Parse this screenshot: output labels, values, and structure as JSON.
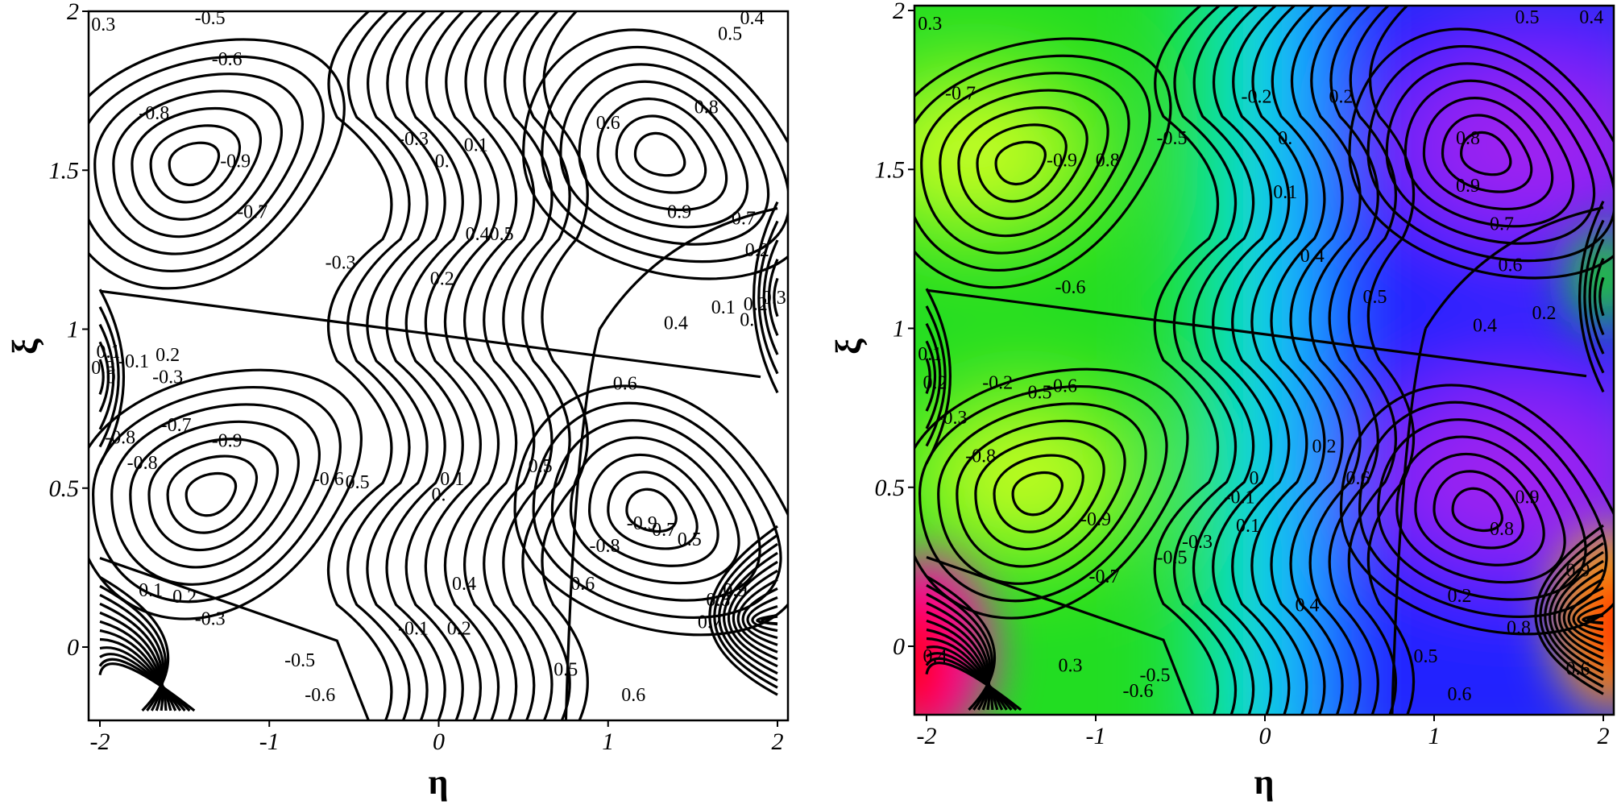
{
  "chart_data": [
    {
      "type": "contour",
      "title": "",
      "xlabel": "η",
      "ylabel": "ξ",
      "xlim": [
        -2,
        2
      ],
      "ylim": [
        -0.2,
        2
      ],
      "x_ticks": [
        "-2",
        "-1",
        "0",
        "1",
        "2"
      ],
      "y_ticks": [
        "0",
        "0.5",
        "1",
        "1.5",
        "2"
      ],
      "filled": false,
      "contour_labels": [
        {
          "text": "0.3",
          "x": -1.98,
          "y": 1.96
        },
        {
          "text": "-0.5",
          "x": -1.35,
          "y": 1.98
        },
        {
          "text": "-0.6",
          "x": -1.25,
          "y": 1.85
        },
        {
          "text": "-0.8",
          "x": -1.68,
          "y": 1.68
        },
        {
          "text": "-0.9",
          "x": -1.2,
          "y": 1.53
        },
        {
          "text": "-0.7",
          "x": -1.1,
          "y": 1.37
        },
        {
          "text": "-0.3",
          "x": -0.58,
          "y": 1.21
        },
        {
          "text": "-0.3",
          "x": -0.15,
          "y": 1.6
        },
        {
          "text": "0.1",
          "x": 0.22,
          "y": 1.58
        },
        {
          "text": "0.",
          "x": 0.02,
          "y": 1.53
        },
        {
          "text": "0.2",
          "x": 0.02,
          "y": 1.16
        },
        {
          "text": "0.40.5",
          "x": 0.3,
          "y": 1.3
        },
        {
          "text": "0.6",
          "x": 1.0,
          "y": 1.65
        },
        {
          "text": "0.8",
          "x": 1.58,
          "y": 1.7
        },
        {
          "text": "0.9",
          "x": 1.42,
          "y": 1.37
        },
        {
          "text": "0.5",
          "x": 1.72,
          "y": 1.93
        },
        {
          "text": "0.4",
          "x": 1.85,
          "y": 1.98
        },
        {
          "text": "0.7",
          "x": 1.8,
          "y": 1.35
        },
        {
          "text": "0.2",
          "x": 1.88,
          "y": 1.25
        },
        {
          "text": "0.1",
          "x": 1.68,
          "y": 1.07
        },
        {
          "text": "0.2",
          "x": 1.87,
          "y": 1.08
        },
        {
          "text": "0.3",
          "x": 1.98,
          "y": 1.1
        },
        {
          "text": "0.",
          "x": 1.82,
          "y": 1.03
        },
        {
          "text": "0.4",
          "x": 1.4,
          "y": 1.02
        },
        {
          "text": "0.6",
          "x": 1.1,
          "y": 0.83
        },
        {
          "text": "0.1",
          "x": -1.95,
          "y": 0.93
        },
        {
          "text": "-0.1",
          "x": -1.8,
          "y": 0.9
        },
        {
          "text": "0.2",
          "x": -1.6,
          "y": 0.92
        },
        {
          "text": "0.3",
          "x": -1.98,
          "y": 0.88
        },
        {
          "text": "0.",
          "x": -1.92,
          "y": 0.85
        },
        {
          "text": "-0.3",
          "x": -1.6,
          "y": 0.85
        },
        {
          "text": "-0.7",
          "x": -1.55,
          "y": 0.7
        },
        {
          "text": "-0.8",
          "x": -1.88,
          "y": 0.66
        },
        {
          "text": "-0.8",
          "x": -1.75,
          "y": 0.58
        },
        {
          "text": "-0.9",
          "x": -1.25,
          "y": 0.65
        },
        {
          "text": "-0.6",
          "x": -0.65,
          "y": 0.53
        },
        {
          "text": "0.5",
          "x": -0.48,
          "y": 0.52
        },
        {
          "text": "0.1",
          "x": 0.08,
          "y": 0.53
        },
        {
          "text": "0.",
          "x": 0.0,
          "y": 0.48
        },
        {
          "text": "0.5",
          "x": 0.6,
          "y": 0.57
        },
        {
          "text": "-0.9",
          "x": 1.2,
          "y": 0.39
        },
        {
          "text": "-0.8",
          "x": 0.98,
          "y": 0.32
        },
        {
          "text": "0.4",
          "x": 0.15,
          "y": 0.2
        },
        {
          "text": "0.6",
          "x": 0.85,
          "y": 0.2
        },
        {
          "text": "0.1",
          "x": -1.7,
          "y": 0.18
        },
        {
          "text": "0.2",
          "x": -1.5,
          "y": 0.16
        },
        {
          "text": "-0.3",
          "x": -1.35,
          "y": 0.09
        },
        {
          "text": "-0.1",
          "x": -0.15,
          "y": 0.06
        },
        {
          "text": "0.2",
          "x": 0.12,
          "y": 0.06
        },
        {
          "text": "-0.5",
          "x": -0.82,
          "y": -0.04
        },
        {
          "text": "-0.6",
          "x": -0.7,
          "y": -0.15
        },
        {
          "text": "0.5",
          "x": 0.75,
          "y": -0.07
        },
        {
          "text": "0.6",
          "x": 1.15,
          "y": -0.15
        },
        {
          "text": "0.9",
          "x": 1.75,
          "y": 0.18
        },
        {
          "text": "0.7",
          "x": 1.6,
          "y": 0.08
        },
        {
          "text": "0.8",
          "x": 1.65,
          "y": 0.15
        },
        {
          "text": "0.5",
          "x": 1.48,
          "y": 0.34
        },
        {
          "text": "0.7",
          "x": 1.33,
          "y": 0.37
        }
      ]
    },
    {
      "type": "heatmap",
      "title": "",
      "xlabel": "η",
      "ylabel": "ξ",
      "xlim": [
        -2,
        2
      ],
      "ylim": [
        -0.2,
        2
      ],
      "x_ticks": [
        "-2",
        "-1",
        "0",
        "1",
        "2"
      ],
      "y_ticks": [
        "0",
        "0.5",
        "1",
        "1.5",
        "2"
      ],
      "filled": true,
      "colormap": [
        "#ff0000",
        "#b8ff1e",
        "#22e022",
        "#00ffff",
        "#1a1aff",
        "#a020f0",
        "#ff00ff",
        "#ff0000"
      ],
      "contour_labels": [
        {
          "text": "0.3",
          "x": -1.98,
          "y": 1.96
        },
        {
          "text": "-0.7",
          "x": -1.8,
          "y": 1.74
        },
        {
          "text": "-0.9",
          "x": -1.2,
          "y": 1.53
        },
        {
          "text": "0.8",
          "x": -0.93,
          "y": 1.53
        },
        {
          "text": "-0.6",
          "x": -1.15,
          "y": 1.13
        },
        {
          "text": "-0.5",
          "x": -0.55,
          "y": 1.6
        },
        {
          "text": "-0.2",
          "x": -0.05,
          "y": 1.73
        },
        {
          "text": "0.",
          "x": 0.12,
          "y": 1.6
        },
        {
          "text": "0.1",
          "x": 0.12,
          "y": 1.43
        },
        {
          "text": "0.2",
          "x": 0.45,
          "y": 1.73
        },
        {
          "text": "0.4",
          "x": 0.28,
          "y": 1.23
        },
        {
          "text": "0.5",
          "x": 0.65,
          "y": 1.1
        },
        {
          "text": "0.8",
          "x": 1.2,
          "y": 1.6
        },
        {
          "text": "0.9",
          "x": 1.2,
          "y": 1.45
        },
        {
          "text": "0.7",
          "x": 1.4,
          "y": 1.33
        },
        {
          "text": "0.6",
          "x": 1.45,
          "y": 1.2
        },
        {
          "text": "0.5",
          "x": 1.55,
          "y": 1.98
        },
        {
          "text": "0.4",
          "x": 1.93,
          "y": 1.98
        },
        {
          "text": "0.2",
          "x": 1.65,
          "y": 1.05
        },
        {
          "text": "0.4",
          "x": 1.3,
          "y": 1.01
        },
        {
          "text": "0.1",
          "x": -1.98,
          "y": 0.92
        },
        {
          "text": "0.2",
          "x": -1.95,
          "y": 0.83
        },
        {
          "text": "-0.2",
          "x": -1.58,
          "y": 0.83
        },
        {
          "text": "-0.5",
          "x": -1.35,
          "y": 0.8
        },
        {
          "text": "-0.6",
          "x": -1.2,
          "y": 0.82
        },
        {
          "text": "-0.3",
          "x": -1.85,
          "y": 0.72
        },
        {
          "text": "-0.8",
          "x": -1.68,
          "y": 0.6
        },
        {
          "text": "-0.9",
          "x": -1.0,
          "y": 0.4
        },
        {
          "text": "-0.7",
          "x": -0.95,
          "y": 0.22
        },
        {
          "text": "-0.5",
          "x": -0.55,
          "y": 0.28
        },
        {
          "text": "-0.3",
          "x": -0.4,
          "y": 0.33
        },
        {
          "text": "-0.1",
          "x": -0.15,
          "y": 0.47
        },
        {
          "text": "0.",
          "x": -0.05,
          "y": 0.53
        },
        {
          "text": "0.1",
          "x": -0.1,
          "y": 0.38
        },
        {
          "text": "0.2",
          "x": 0.35,
          "y": 0.63
        },
        {
          "text": "0.6",
          "x": 0.55,
          "y": 0.53
        },
        {
          "text": "0.4",
          "x": 0.25,
          "y": 0.13
        },
        {
          "text": "0.9",
          "x": 1.55,
          "y": 0.47
        },
        {
          "text": "0.8",
          "x": 1.4,
          "y": 0.37
        },
        {
          "text": "0.9",
          "x": 1.85,
          "y": 0.24
        },
        {
          "text": "0.2",
          "x": 1.15,
          "y": 0.16
        },
        {
          "text": "0.8",
          "x": 1.5,
          "y": 0.06
        },
        {
          "text": "0.5",
          "x": 0.95,
          "y": -0.03
        },
        {
          "text": "0.6",
          "x": 1.15,
          "y": -0.15
        },
        {
          "text": "0.6",
          "x": 1.85,
          "y": -0.07
        },
        {
          "text": "0.3",
          "x": -1.15,
          "y": -0.06
        },
        {
          "text": "-0.5",
          "x": -0.65,
          "y": -0.09
        },
        {
          "text": "-0.6",
          "x": -0.75,
          "y": -0.14
        },
        {
          "text": "0.4",
          "x": -1.95,
          "y": -0.03
        }
      ]
    }
  ]
}
